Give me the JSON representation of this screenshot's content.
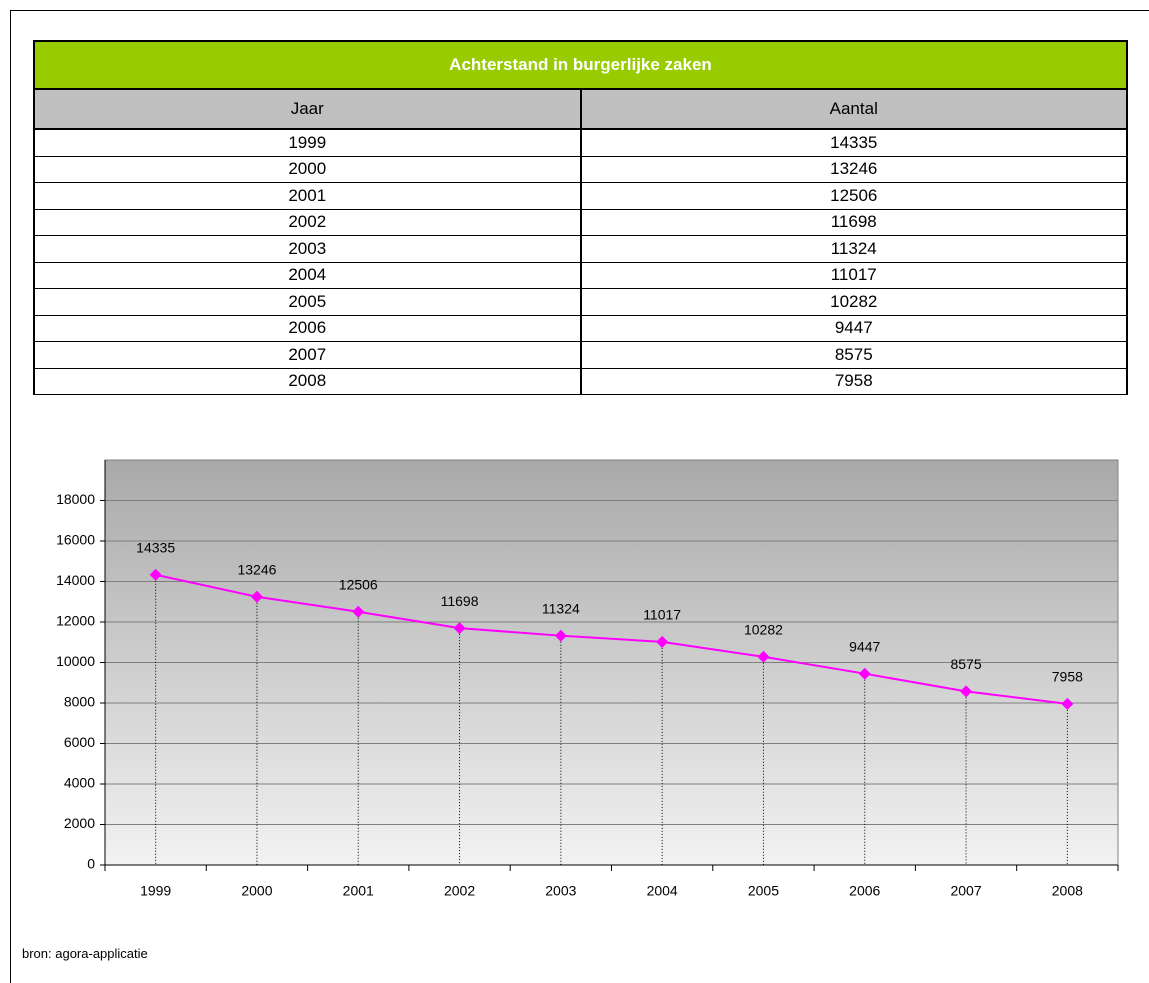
{
  "table": {
    "title": "Achterstand in burgerlijke zaken",
    "headers": [
      "Jaar",
      "Aantal"
    ],
    "rows": [
      [
        "1999",
        "14335"
      ],
      [
        "2000",
        "13246"
      ],
      [
        "2001",
        "12506"
      ],
      [
        "2002",
        "11698"
      ],
      [
        "2003",
        "11324"
      ],
      [
        "2004",
        "11017"
      ],
      [
        "2005",
        "10282"
      ],
      [
        "2006",
        "9447"
      ],
      [
        "2007",
        "8575"
      ],
      [
        "2008",
        "7958"
      ]
    ]
  },
  "chart_data": {
    "type": "line",
    "categories": [
      "1999",
      "2000",
      "2001",
      "2002",
      "2003",
      "2004",
      "2005",
      "2006",
      "2007",
      "2008"
    ],
    "values": [
      14335,
      13246,
      12506,
      11698,
      11324,
      11017,
      10282,
      9447,
      8575,
      7958
    ],
    "color": "#ff00ff",
    "ylim": [
      0,
      20000
    ],
    "yticks": [
      0,
      2000,
      4000,
      6000,
      8000,
      10000,
      12000,
      14000,
      16000,
      18000
    ],
    "grid": true,
    "drop_lines": true
  },
  "source": "bron: agora-applicatie"
}
